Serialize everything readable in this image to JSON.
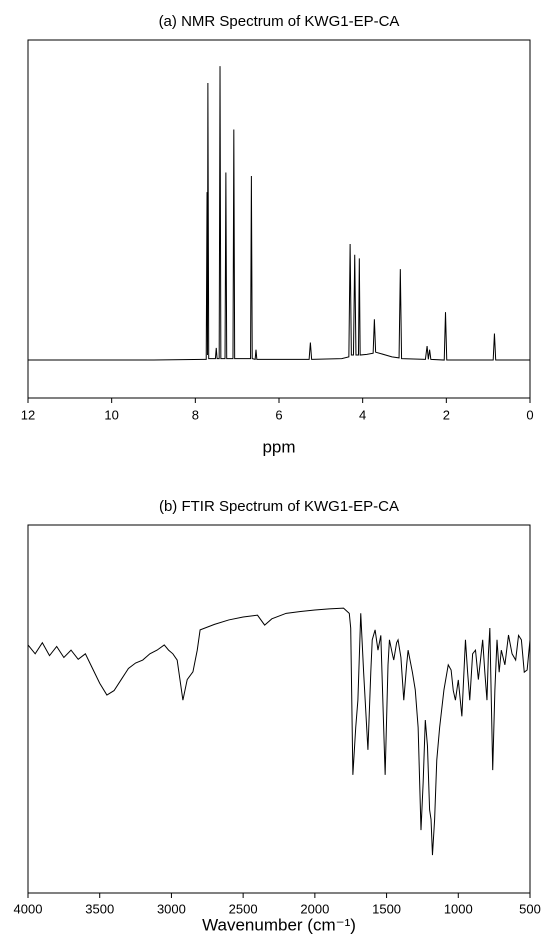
{
  "chart_data": [
    {
      "type": "line",
      "title": "(a) NMR Spectrum of KWG1-EP-CA",
      "xlabel": "ppm",
      "color": "#000000",
      "xlim": [
        12,
        0
      ],
      "xticks": [
        12,
        10,
        8,
        6,
        4,
        2,
        0
      ],
      "ylim": [
        0,
        100
      ],
      "x": [
        12,
        9,
        7.8,
        7.74,
        7.72,
        7.71,
        7.7,
        7.68,
        7.55,
        7.52,
        7.5,
        7.48,
        7.43,
        7.41,
        7.39,
        7.29,
        7.27,
        7.25,
        7.1,
        7.08,
        7.06,
        6.68,
        6.66,
        6.64,
        6.57,
        6.55,
        6.53,
        5.28,
        5.25,
        5.22,
        4.5,
        4.33,
        4.3,
        4.27,
        4.22,
        4.19,
        4.16,
        4.1,
        4.08,
        4.06,
        3.9,
        3.75,
        3.72,
        3.69,
        3.6,
        3.3,
        3.13,
        3.1,
        3.07,
        2.5,
        2.46,
        2.43,
        2.4,
        2.37,
        2.05,
        2.02,
        1.99,
        0.88,
        0.85,
        0.82,
        0
      ],
      "values": [
        10.6,
        10.6,
        10.8,
        10.8,
        57.5,
        12,
        88,
        11,
        11,
        11,
        14,
        11,
        11,
        92.7,
        11,
        11,
        63,
        11,
        11,
        75,
        11,
        11,
        62,
        11,
        10.8,
        13.5,
        10.8,
        10.8,
        15.5,
        10.8,
        11,
        11.5,
        43,
        12,
        12,
        40,
        12,
        12,
        39,
        12,
        12.2,
        12.5,
        22,
        12.8,
        12.5,
        11.5,
        11.2,
        36,
        11,
        10.8,
        14.5,
        10.8,
        13.5,
        10.8,
        10.6,
        24,
        10.6,
        10.6,
        18,
        10.6,
        10.6
      ]
    },
    {
      "type": "line",
      "title": "(b) FTIR Spectrum of KWG1-EP-CA",
      "xlabel": "Wavenumber (cm⁻¹)",
      "color": "#000000",
      "xlim": [
        4000,
        500
      ],
      "xticks": [
        4000,
        3500,
        3000,
        2500,
        2000,
        1500,
        1000,
        500
      ],
      "ylim": [
        0,
        100
      ],
      "x": [
        4000,
        3950,
        3900,
        3850,
        3800,
        3750,
        3700,
        3650,
        3600,
        3550,
        3500,
        3450,
        3400,
        3350,
        3300,
        3250,
        3200,
        3150,
        3100,
        3050,
        3020,
        2990,
        2960,
        2920,
        2890,
        2850,
        2820,
        2800,
        2700,
        2600,
        2500,
        2400,
        2350,
        2300,
        2200,
        2100,
        2000,
        1900,
        1800,
        1760,
        1750,
        1735,
        1715,
        1700,
        1680,
        1660,
        1630,
        1610,
        1600,
        1580,
        1560,
        1540,
        1510,
        1490,
        1480,
        1460,
        1450,
        1430,
        1420,
        1400,
        1380,
        1360,
        1350,
        1320,
        1300,
        1280,
        1260,
        1245,
        1230,
        1215,
        1200,
        1190,
        1180,
        1165,
        1150,
        1130,
        1100,
        1070,
        1050,
        1035,
        1020,
        1000,
        975,
        950,
        935,
        920,
        900,
        880,
        860,
        830,
        815,
        800,
        790,
        780,
        760,
        745,
        730,
        715,
        700,
        675,
        650,
        625,
        600,
        580,
        560,
        540,
        520,
        500
      ],
      "values": [
        67.4,
        65,
        68,
        64.5,
        67,
        64,
        66,
        63.5,
        65,
        61,
        57,
        53.8,
        55,
        58,
        61,
        62.5,
        63.3,
        65,
        66,
        67.4,
        66,
        65,
        63.3,
        52.4,
        58,
        60.1,
        66,
        71.5,
        73,
        74.2,
        75,
        75.5,
        72.8,
        74.5,
        76,
        76.5,
        76.9,
        77.2,
        77.4,
        76,
        72,
        32.1,
        45,
        52.4,
        76,
        60,
        38.9,
        60,
        68.8,
        71.5,
        66,
        70,
        32.1,
        62,
        68.8,
        65,
        63.3,
        68,
        68.8,
        64,
        52.4,
        62,
        66,
        60,
        55.2,
        45,
        17.1,
        30,
        47,
        40,
        22.6,
        20,
        10.3,
        20,
        36.1,
        45,
        55.2,
        62,
        60.6,
        55,
        52.4,
        57.9,
        48,
        68.8,
        60,
        52.4,
        65,
        66,
        58,
        68.8,
        60,
        52.4,
        65,
        72,
        33.4,
        55,
        68.8,
        60,
        66,
        62,
        70.1,
        65,
        63.3,
        70,
        68.8,
        60,
        60.6,
        68.8
      ]
    }
  ]
}
